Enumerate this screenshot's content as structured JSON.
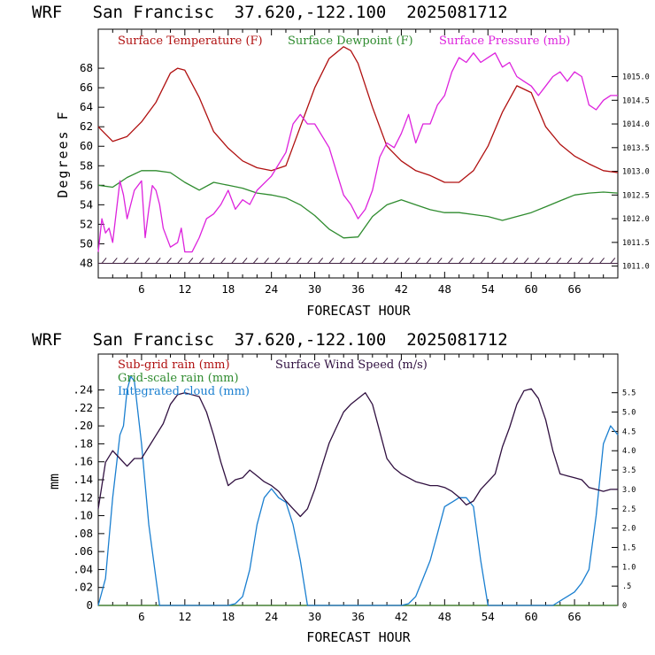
{
  "chart_data": [
    {
      "type": "line",
      "title": "WRF   San Francisc  37.620,-122.100  2025081712",
      "xlabel": "FORECAST HOUR",
      "ylabel": "Degrees F",
      "xlim": [
        0,
        72
      ],
      "ylim": [
        46.5,
        72
      ],
      "y2lim": [
        1010.75,
        1016.0
      ],
      "xticks": [
        "6",
        "12",
        "18",
        "24",
        "30",
        "36",
        "42",
        "48",
        "54",
        "60",
        "66"
      ],
      "yticks": [
        "48",
        "50",
        "52",
        "54",
        "56",
        "58",
        "60",
        "62",
        "64",
        "66",
        "68"
      ],
      "y2ticks": [
        "1011.0",
        "1011.5",
        "1012.0",
        "1012.5",
        "1013.0",
        "1013.5",
        "1014.0",
        "1014.5",
        "1015.0"
      ],
      "legend_position": "top",
      "colors": {
        "temperature": "#b01010",
        "dewpoint": "#2e8b2e",
        "pressure": "#dd22dd",
        "barbs": "#402040"
      },
      "series": [
        {
          "name": "Surface Temperature (F)",
          "axis": "left",
          "x": [
            0,
            2,
            4,
            6,
            8,
            10,
            11,
            12,
            14,
            16,
            18,
            20,
            22,
            24,
            26,
            28,
            30,
            32,
            34,
            35,
            36,
            38,
            40,
            42,
            44,
            46,
            48,
            50,
            52,
            54,
            56,
            58,
            60,
            62,
            64,
            66,
            68,
            70,
            72
          ],
          "y": [
            62,
            60.5,
            61,
            62.5,
            64.5,
            67.5,
            68,
            67.8,
            65,
            61.5,
            59.8,
            58.5,
            57.8,
            57.5,
            58,
            62,
            66,
            69,
            70.2,
            69.8,
            68.5,
            64,
            60,
            58.5,
            57.5,
            57,
            56.3,
            56.3,
            57.5,
            60,
            63.5,
            66.2,
            65.5,
            62,
            60.2,
            59,
            58.2,
            57.5,
            57.3
          ]
        },
        {
          "name": "Surface Dewpoint (F)",
          "axis": "left",
          "x": [
            0,
            2,
            4,
            6,
            8,
            10,
            12,
            14,
            16,
            18,
            20,
            22,
            24,
            26,
            28,
            30,
            32,
            34,
            36,
            38,
            40,
            42,
            44,
            46,
            48,
            50,
            52,
            54,
            56,
            58,
            60,
            62,
            64,
            66,
            68,
            70,
            72
          ],
          "y": [
            56,
            55.8,
            56.8,
            57.5,
            57.5,
            57.3,
            56.3,
            55.5,
            56.3,
            56,
            55.7,
            55.2,
            55,
            54.7,
            54,
            52.9,
            51.5,
            50.6,
            50.7,
            52.8,
            54,
            54.5,
            54,
            53.5,
            53.2,
            53.2,
            53,
            52.8,
            52.4,
            52.8,
            53.2,
            53.8,
            54.4,
            55,
            55.2,
            55.3,
            55.2
          ]
        },
        {
          "name": "Surface Pressure (mb)",
          "axis": "right",
          "x": [
            0,
            0.5,
            1,
            1.5,
            2,
            3,
            3.5,
            4,
            5,
            6,
            6.5,
            7,
            7.5,
            8,
            8.5,
            9,
            10,
            11,
            11.5,
            12,
            13,
            14,
            15,
            16,
            17,
            18,
            19,
            20,
            21,
            22,
            24,
            26,
            27,
            28,
            29,
            30,
            32,
            33,
            34,
            35,
            36,
            37,
            38,
            39,
            40,
            41,
            42,
            43,
            44,
            45,
            46,
            47,
            48,
            49,
            50,
            51,
            52,
            53,
            54,
            55,
            56,
            57,
            58,
            59,
            60,
            61,
            62,
            63,
            64,
            65,
            66,
            67,
            68,
            69,
            70,
            71,
            72
          ],
          "y": [
            1011.3,
            1012.0,
            1011.7,
            1011.8,
            1011.5,
            1012.8,
            1012.5,
            1012.0,
            1012.6,
            1012.8,
            1011.6,
            1012.2,
            1012.7,
            1012.6,
            1012.3,
            1011.8,
            1011.4,
            1011.5,
            1011.8,
            1011.3,
            1011.3,
            1011.6,
            1012.0,
            1012.1,
            1012.3,
            1012.6,
            1012.2,
            1012.4,
            1012.3,
            1012.6,
            1012.9,
            1013.4,
            1014.0,
            1014.2,
            1014.0,
            1014.0,
            1013.5,
            1013.0,
            1012.5,
            1012.3,
            1012.0,
            1012.2,
            1012.6,
            1013.3,
            1013.6,
            1013.5,
            1013.8,
            1014.2,
            1013.6,
            1014.0,
            1014.0,
            1014.4,
            1014.6,
            1015.1,
            1015.4,
            1015.3,
            1015.5,
            1015.3,
            1015.4,
            1015.5,
            1015.2,
            1015.3,
            1015.0,
            1014.9,
            1014.8,
            1014.6,
            1014.8,
            1015.0,
            1015.1,
            1014.9,
            1015.1,
            1015.0,
            1014.4,
            1014.3,
            1014.5,
            1014.6,
            1014.6
          ]
        }
      ]
    },
    {
      "type": "line",
      "title": "WRF   San Francisc  37.620,-122.100  2025081712",
      "xlabel": "FORECAST HOUR",
      "ylabel": "mm",
      "xlim": [
        0,
        72
      ],
      "ylim": [
        0,
        0.28
      ],
      "y2lim": [
        0,
        6.5
      ],
      "xticks": [
        "6",
        "12",
        "18",
        "24",
        "30",
        "36",
        "42",
        "48",
        "54",
        "60",
        "66"
      ],
      "yticks": [
        "0",
        ".02",
        ".04",
        ".06",
        ".08",
        ".10",
        ".12",
        ".14",
        ".16",
        ".18",
        ".20",
        ".22",
        ".24"
      ],
      "y2ticks": [
        "0",
        ".5",
        "1.0",
        "1.5",
        "2.0",
        "2.5",
        "3.0",
        "3.5",
        "4.0",
        "4.5",
        "5.0",
        "5.5"
      ],
      "legend_position": "top",
      "colors": {
        "subgrid": "#b01010",
        "gridscale": "#2e8b2e",
        "cloud": "#1a7fd0",
        "wind": "#301040"
      },
      "series": [
        {
          "name": "Sub-grid rain (mm)",
          "axis": "left",
          "x": [
            0,
            72
          ],
          "y": [
            0,
            0
          ]
        },
        {
          "name": "Grid-scale rain (mm)",
          "axis": "left",
          "x": [
            0,
            72
          ],
          "y": [
            0,
            0
          ]
        },
        {
          "name": "Integrated cloud (mm)",
          "axis": "left",
          "x": [
            0,
            1,
            2,
            3,
            3.5,
            4,
            4.5,
            5,
            6,
            7,
            8,
            8.5,
            9,
            18,
            19,
            20,
            21,
            22,
            23,
            24,
            25,
            26,
            27,
            28,
            29,
            42,
            43,
            44,
            45,
            46,
            47,
            48,
            49,
            50,
            51,
            52,
            53,
            54,
            63,
            64,
            65,
            66,
            67,
            68,
            69,
            70,
            71,
            72
          ],
          "y": [
            0,
            0.03,
            0.12,
            0.19,
            0.2,
            0.24,
            0.255,
            0.25,
            0.18,
            0.09,
            0.03,
            0,
            0,
            0,
            0.002,
            0.01,
            0.04,
            0.09,
            0.12,
            0.13,
            0.12,
            0.115,
            0.09,
            0.05,
            0,
            0,
            0.002,
            0.01,
            0.03,
            0.05,
            0.08,
            0.11,
            0.115,
            0.12,
            0.12,
            0.11,
            0.05,
            0,
            0,
            0.005,
            0.01,
            0.015,
            0.025,
            0.04,
            0.1,
            0.18,
            0.2,
            0.19
          ]
        },
        {
          "name": "Surface Wind Speed (m/s)",
          "axis": "right",
          "x": [
            0,
            1,
            2,
            3,
            4,
            5,
            6,
            7,
            8,
            9,
            10,
            11,
            12,
            13,
            14,
            15,
            16,
            17,
            18,
            19,
            20,
            21,
            22,
            23,
            24,
            25,
            26,
            27,
            28,
            29,
            30,
            31,
            32,
            33,
            34,
            35,
            36,
            37,
            38,
            39,
            40,
            41,
            42,
            43,
            44,
            45,
            46,
            47,
            48,
            49,
            50,
            51,
            52,
            53,
            54,
            55,
            56,
            57,
            58,
            59,
            60,
            61,
            62,
            63,
            64,
            65,
            66,
            67,
            68,
            69,
            70,
            71,
            72
          ],
          "y": [
            2.5,
            3.7,
            4.0,
            3.8,
            3.6,
            3.8,
            3.8,
            4.1,
            4.4,
            4.7,
            5.2,
            5.45,
            5.5,
            5.45,
            5.4,
            5.0,
            4.4,
            3.7,
            3.1,
            3.25,
            3.3,
            3.5,
            3.35,
            3.2,
            3.1,
            2.95,
            2.7,
            2.5,
            2.3,
            2.5,
            3.0,
            3.6,
            4.2,
            4.6,
            5.0,
            5.2,
            5.35,
            5.5,
            5.2,
            4.5,
            3.8,
            3.55,
            3.4,
            3.3,
            3.2,
            3.15,
            3.1,
            3.1,
            3.05,
            2.95,
            2.8,
            2.6,
            2.7,
            3.0,
            3.2,
            3.4,
            4.1,
            4.6,
            5.2,
            5.55,
            5.6,
            5.35,
            4.8,
            4.0,
            3.4,
            3.35,
            3.3,
            3.25,
            3.05,
            3.0,
            2.95,
            3.0,
            3.0
          ]
        }
      ]
    }
  ]
}
